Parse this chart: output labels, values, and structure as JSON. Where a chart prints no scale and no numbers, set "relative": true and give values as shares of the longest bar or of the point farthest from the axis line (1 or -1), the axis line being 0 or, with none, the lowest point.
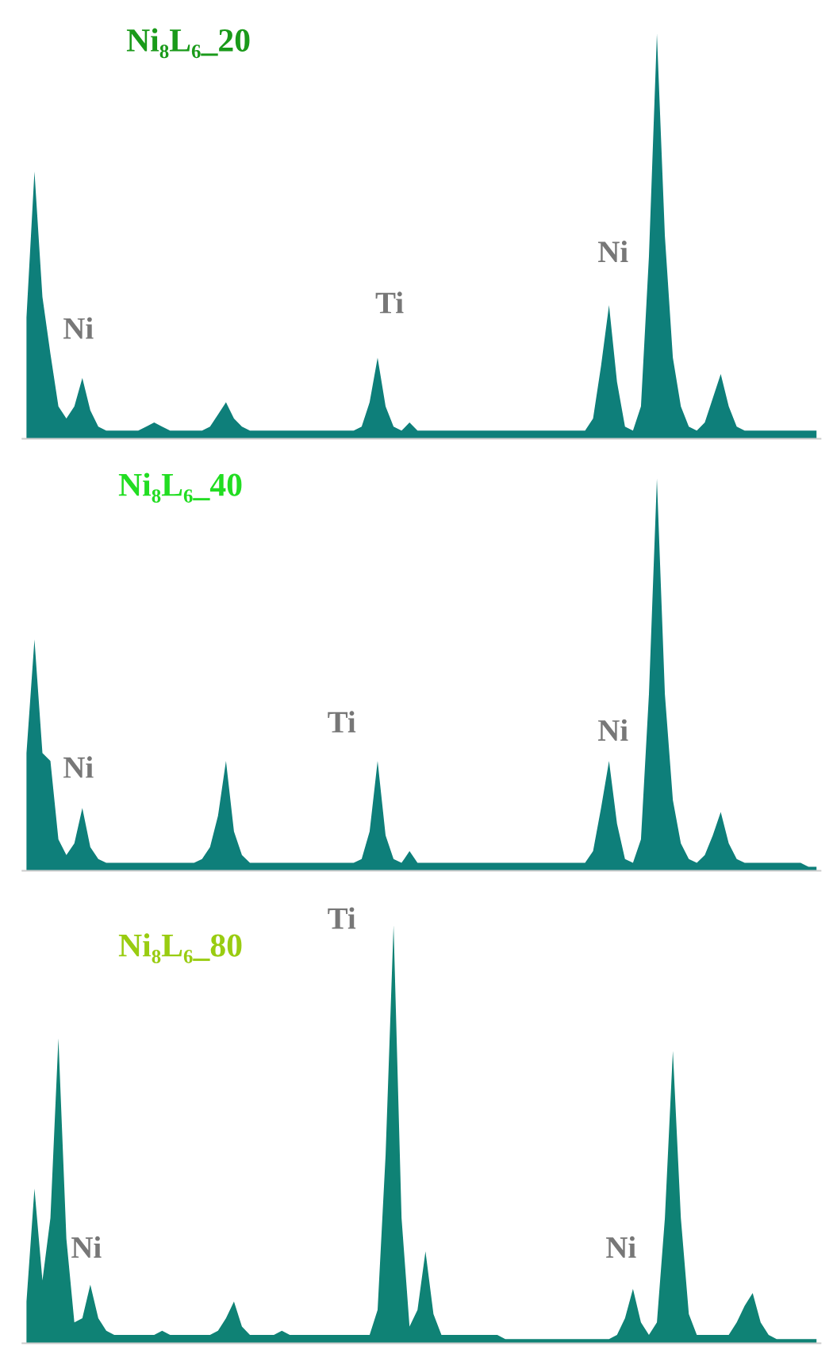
{
  "chart_data": [
    {
      "type": "area",
      "title": "Ni₈L₆_20",
      "relative": true,
      "grid": false,
      "legend": false,
      "categories": [
        null,
        null,
        null,
        null,
        null,
        null,
        null,
        null,
        null,
        null,
        null,
        null,
        null,
        null,
        null,
        null,
        null,
        null,
        null,
        null,
        null,
        null,
        null,
        null,
        null,
        null,
        null,
        null,
        null,
        null,
        null,
        null,
        null,
        null,
        null,
        null,
        null,
        null,
        null,
        null,
        null,
        null,
        null,
        null,
        null,
        null,
        null,
        null,
        null,
        null,
        null,
        null,
        null,
        null,
        null,
        null,
        null,
        null,
        null,
        null,
        null,
        null,
        null,
        null,
        null,
        null,
        null,
        null,
        null,
        null,
        null,
        null,
        null,
        null,
        null,
        null,
        null,
        null,
        null,
        null,
        null,
        null,
        null,
        null,
        null,
        null,
        null,
        null,
        null,
        null,
        null,
        null,
        null,
        null,
        null,
        null,
        null,
        null,
        null,
        null
      ],
      "series": [
        {
          "color": "#0e7f7a",
          "values": [
            0.3,
            0.66,
            0.35,
            0.21,
            0.08,
            0.05,
            0.08,
            0.15,
            0.07,
            0.03,
            0.02,
            0.02,
            0.02,
            0.02,
            0.02,
            0.03,
            0.04,
            0.03,
            0.02,
            0.02,
            0.02,
            0.02,
            0.02,
            0.03,
            0.06,
            0.09,
            0.05,
            0.03,
            0.02,
            0.02,
            0.02,
            0.02,
            0.02,
            0.02,
            0.02,
            0.02,
            0.02,
            0.02,
            0.02,
            0.02,
            0.02,
            0.02,
            0.03,
            0.09,
            0.2,
            0.08,
            0.03,
            0.02,
            0.04,
            0.02,
            0.02,
            0.02,
            0.02,
            0.02,
            0.02,
            0.02,
            0.02,
            0.02,
            0.02,
            0.02,
            0.02,
            0.02,
            0.02,
            0.02,
            0.02,
            0.02,
            0.02,
            0.02,
            0.02,
            0.02,
            0.02,
            0.05,
            0.18,
            0.33,
            0.14,
            0.03,
            0.02,
            0.08,
            0.45,
            1,
            0.5,
            0.2,
            0.08,
            0.03,
            0.02,
            0.04,
            0.1,
            0.16,
            0.08,
            0.03,
            0.02,
            0.02,
            0.02,
            0.02,
            0.02,
            0.02,
            0.02,
            0.02,
            0.02,
            0.02
          ]
        }
      ],
      "annotations": [
        "Ni",
        "Ti",
        "Ni"
      ]
    },
    {
      "type": "area",
      "title": "Ni₈L₆_40",
      "relative": true,
      "grid": false,
      "legend": false,
      "categories": [
        null,
        null,
        null,
        null,
        null,
        null,
        null,
        null,
        null,
        null,
        null,
        null,
        null,
        null,
        null,
        null,
        null,
        null,
        null,
        null,
        null,
        null,
        null,
        null,
        null,
        null,
        null,
        null,
        null,
        null,
        null,
        null,
        null,
        null,
        null,
        null,
        null,
        null,
        null,
        null,
        null,
        null,
        null,
        null,
        null,
        null,
        null,
        null,
        null,
        null,
        null,
        null,
        null,
        null,
        null,
        null,
        null,
        null,
        null,
        null,
        null,
        null,
        null,
        null,
        null,
        null,
        null,
        null,
        null,
        null,
        null,
        null,
        null,
        null,
        null,
        null,
        null,
        null,
        null,
        null,
        null,
        null,
        null,
        null,
        null,
        null,
        null,
        null,
        null,
        null,
        null,
        null,
        null,
        null,
        null,
        null,
        null,
        null,
        null,
        null
      ],
      "series": [
        {
          "color": "#0e7f7a",
          "values": [
            0.3,
            0.59,
            0.3,
            0.28,
            0.08,
            0.04,
            0.07,
            0.16,
            0.06,
            0.03,
            0.02,
            0.02,
            0.02,
            0.02,
            0.02,
            0.02,
            0.02,
            0.02,
            0.02,
            0.02,
            0.02,
            0.02,
            0.03,
            0.06,
            0.14,
            0.28,
            0.1,
            0.04,
            0.02,
            0.02,
            0.02,
            0.02,
            0.02,
            0.02,
            0.02,
            0.02,
            0.02,
            0.02,
            0.02,
            0.02,
            0.02,
            0.02,
            0.03,
            0.1,
            0.28,
            0.09,
            0.03,
            0.02,
            0.05,
            0.02,
            0.02,
            0.02,
            0.02,
            0.02,
            0.02,
            0.02,
            0.02,
            0.02,
            0.02,
            0.02,
            0.02,
            0.02,
            0.02,
            0.02,
            0.02,
            0.02,
            0.02,
            0.02,
            0.02,
            0.02,
            0.02,
            0.05,
            0.16,
            0.28,
            0.12,
            0.03,
            0.02,
            0.08,
            0.45,
            1,
            0.45,
            0.18,
            0.07,
            0.03,
            0.02,
            0.04,
            0.09,
            0.15,
            0.07,
            0.03,
            0.02,
            0.02,
            0.02,
            0.02,
            0.02,
            0.02,
            0.02,
            0.02,
            0.01,
            0.01
          ]
        }
      ],
      "annotations": [
        "Ni",
        "Ti",
        "Ni"
      ]
    },
    {
      "type": "area",
      "title": "Ni₈L₆_80",
      "relative": true,
      "grid": false,
      "legend": false,
      "categories": [
        null,
        null,
        null,
        null,
        null,
        null,
        null,
        null,
        null,
        null,
        null,
        null,
        null,
        null,
        null,
        null,
        null,
        null,
        null,
        null,
        null,
        null,
        null,
        null,
        null,
        null,
        null,
        null,
        null,
        null,
        null,
        null,
        null,
        null,
        null,
        null,
        null,
        null,
        null,
        null,
        null,
        null,
        null,
        null,
        null,
        null,
        null,
        null,
        null,
        null,
        null,
        null,
        null,
        null,
        null,
        null,
        null,
        null,
        null,
        null,
        null,
        null,
        null,
        null,
        null,
        null,
        null,
        null,
        null,
        null,
        null,
        null,
        null,
        null,
        null,
        null,
        null,
        null,
        null,
        null,
        null,
        null,
        null,
        null,
        null,
        null,
        null,
        null,
        null,
        null,
        null,
        null,
        null,
        null,
        null,
        null,
        null,
        null,
        null,
        null
      ],
      "series": [
        {
          "color": "#0f8275",
          "values": [
            0.1,
            0.37,
            0.15,
            0.3,
            0.73,
            0.25,
            0.05,
            0.06,
            0.14,
            0.06,
            0.03,
            0.02,
            0.02,
            0.02,
            0.02,
            0.02,
            0.02,
            0.03,
            0.02,
            0.02,
            0.02,
            0.02,
            0.02,
            0.02,
            0.03,
            0.06,
            0.1,
            0.04,
            0.02,
            0.02,
            0.02,
            0.02,
            0.03,
            0.02,
            0.02,
            0.02,
            0.02,
            0.02,
            0.02,
            0.02,
            0.02,
            0.02,
            0.02,
            0.02,
            0.08,
            0.45,
            1,
            0.3,
            0.04,
            0.08,
            0.22,
            0.07,
            0.02,
            0.02,
            0.02,
            0.02,
            0.02,
            0.02,
            0.02,
            0.02,
            0.01,
            0.01,
            0.01,
            0.01,
            0.01,
            0.01,
            0.01,
            0.01,
            0.01,
            0.01,
            0.01,
            0.01,
            0.01,
            0.01,
            0.02,
            0.06,
            0.13,
            0.05,
            0.02,
            0.05,
            0.3,
            0.7,
            0.3,
            0.07,
            0.02,
            0.02,
            0.02,
            0.02,
            0.02,
            0.05,
            0.09,
            0.12,
            0.05,
            0.02,
            0.01,
            0.01,
            0.01,
            0.01,
            0.01,
            0.01
          ]
        }
      ],
      "annotations": [
        "Ni",
        "Ti",
        "Ni"
      ]
    }
  ]
}
